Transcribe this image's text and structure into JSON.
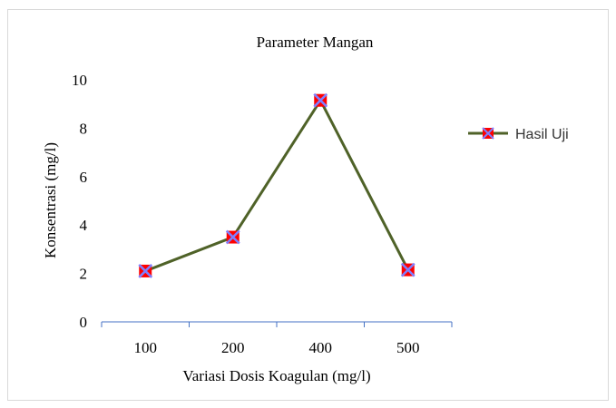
{
  "chart_data": {
    "type": "line",
    "title": "Parameter Mangan",
    "xlabel": "Variasi  Dosis Koagulan  (mg/l)",
    "ylabel": "Konsentrasi  (mg/l)",
    "categories": [
      "100",
      "200",
      "400",
      "500"
    ],
    "series": [
      {
        "name": "Hasil Uji",
        "values": [
          2.1,
          3.5,
          9.15,
          2.15
        ]
      }
    ],
    "ylim": [
      0,
      10
    ],
    "yticks": [
      0,
      2,
      4,
      6,
      8,
      10
    ],
    "grid": false,
    "legend": "right",
    "colors": {
      "line": "#4f6228",
      "marker_fill": "#ff0000",
      "marker_cross": "#7f7fff",
      "axis": "#4472c4"
    }
  }
}
